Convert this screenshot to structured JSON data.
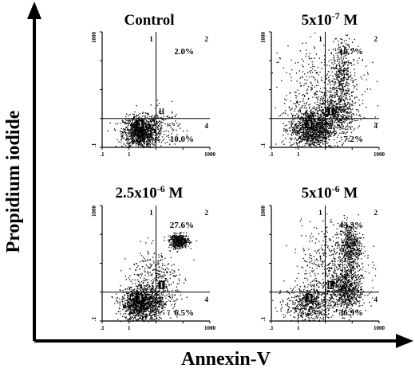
{
  "figure": {
    "xlabel": "Annexin-V",
    "ylabel": "Propidium iodide"
  },
  "chart_data": [
    {
      "type": "scatter",
      "title": "Control",
      "title_base": "Control",
      "title_exp": "",
      "xlim": [
        0.1,
        1000
      ],
      "ylim": [
        0.1,
        1000
      ],
      "scale": "log",
      "x_ticks": [
        ".1",
        "1",
        "10",
        "100",
        "1000"
      ],
      "y_ticks": [
        "1000",
        "100",
        "10",
        "1",
        ".1"
      ],
      "x_tick_labels_shown": [
        ".1",
        "1",
        "1000"
      ],
      "y_tick_labels_shown": [
        "1000",
        ".1"
      ],
      "gate": {
        "x": 10,
        "y": 1
      },
      "quadrant_numbers": [
        "1",
        "2",
        "3",
        "4"
      ],
      "quadrant_percent": {
        "q2": "2.0%",
        "q4": "10.0%"
      },
      "marker_label": "H",
      "clusters": [
        {
          "x": 2.5,
          "y": 0.35,
          "sx": 0.32,
          "sy": 0.28,
          "n": 1100
        },
        {
          "x": 15,
          "y": 0.5,
          "sx": 0.35,
          "sy": 0.35,
          "n": 160
        }
      ]
    },
    {
      "type": "scatter",
      "title": "5x10-7 M",
      "title_base": "5x10",
      "title_exp": "-7",
      "title_unit": " M",
      "xlim": [
        0.1,
        1000
      ],
      "ylim": [
        0.1,
        1000
      ],
      "scale": "log",
      "x_ticks": [
        ".1",
        "1",
        "10",
        "100",
        "1000"
      ],
      "y_ticks": [
        "1000",
        "100",
        "10",
        "1",
        ".1"
      ],
      "x_tick_labels_shown": [
        ".1",
        "1",
        "1000"
      ],
      "y_tick_labels_shown": [
        "1000",
        ".1"
      ],
      "gate": {
        "x": 10,
        "y": 1
      },
      "quadrant_numbers": [
        "1",
        "2",
        "3",
        "4"
      ],
      "quadrant_percent": {
        "q2": "10.7%",
        "q4": "7.2%"
      },
      "marker_label": "I",
      "clusters": [
        {
          "x": 3,
          "y": 0.45,
          "sx": 0.4,
          "sy": 0.35,
          "n": 1200
        },
        {
          "x": 25,
          "y": 1.5,
          "sx": 0.35,
          "sy": 0.35,
          "n": 500
        },
        {
          "x": 40,
          "y": 40,
          "sx": 0.2,
          "sy": 0.55,
          "n": 320
        },
        {
          "x": 10,
          "y": 10,
          "sx": 0.8,
          "sy": 0.8,
          "n": 450
        }
      ]
    },
    {
      "type": "scatter",
      "title": "2.5x10-6 M",
      "title_base": "2.5x10",
      "title_exp": "-6",
      "title_unit": " M",
      "xlim": [
        0.1,
        1000
      ],
      "ylim": [
        0.1,
        1000
      ],
      "scale": "log",
      "x_ticks": [
        ".1",
        "1",
        "10",
        "100",
        "1000"
      ],
      "y_ticks": [
        "1000",
        "100",
        "10",
        "1",
        ".1"
      ],
      "x_tick_labels_shown": [
        ".1",
        "1",
        "1000"
      ],
      "y_tick_labels_shown": [
        "1000",
        ".1"
      ],
      "gate": {
        "x": 10,
        "y": 1
      },
      "quadrant_numbers": [
        "1",
        "2",
        "3",
        "4"
      ],
      "quadrant_percent": {
        "q2": "27.6%",
        "q4": "6.5%"
      },
      "marker_label": "I",
      "clusters": [
        {
          "x": 2.5,
          "y": 0.4,
          "sx": 0.35,
          "sy": 0.3,
          "n": 1100
        },
        {
          "x": 70,
          "y": 60,
          "sx": 0.18,
          "sy": 0.12,
          "n": 420
        },
        {
          "x": 8,
          "y": 3,
          "sx": 0.45,
          "sy": 0.55,
          "n": 350
        },
        {
          "x": 15,
          "y": 0.5,
          "sx": 0.3,
          "sy": 0.3,
          "n": 150
        }
      ]
    },
    {
      "type": "scatter",
      "title": "5x10-6 M",
      "title_base": "5x10",
      "title_exp": "-6",
      "title_unit": " M",
      "xlim": [
        0.1,
        1000
      ],
      "ylim": [
        0.1,
        1000
      ],
      "scale": "log",
      "x_ticks": [
        ".1",
        "1",
        "10",
        "100",
        "1000"
      ],
      "y_ticks": [
        "1000",
        "100",
        "10",
        "1",
        ".1"
      ],
      "x_tick_labels_shown": [
        ".1",
        "1",
        "1000"
      ],
      "y_tick_labels_shown": [
        "1000",
        ".1"
      ],
      "gate": {
        "x": 10,
        "y": 1
      },
      "quadrant_numbers": [
        "1",
        "2",
        "3",
        "4"
      ],
      "quadrant_percent": {
        "q2": "43.3%",
        "q4": "36.9%"
      },
      "marker_label": "L",
      "clusters": [
        {
          "x": 2.5,
          "y": 0.4,
          "sx": 0.45,
          "sy": 0.35,
          "n": 600
        },
        {
          "x": 60,
          "y": 1.2,
          "sx": 0.3,
          "sy": 0.4,
          "n": 650
        },
        {
          "x": 80,
          "y": 40,
          "sx": 0.2,
          "sy": 0.4,
          "n": 450
        },
        {
          "x": 20,
          "y": 10,
          "sx": 0.6,
          "sy": 0.7,
          "n": 500
        }
      ]
    }
  ]
}
